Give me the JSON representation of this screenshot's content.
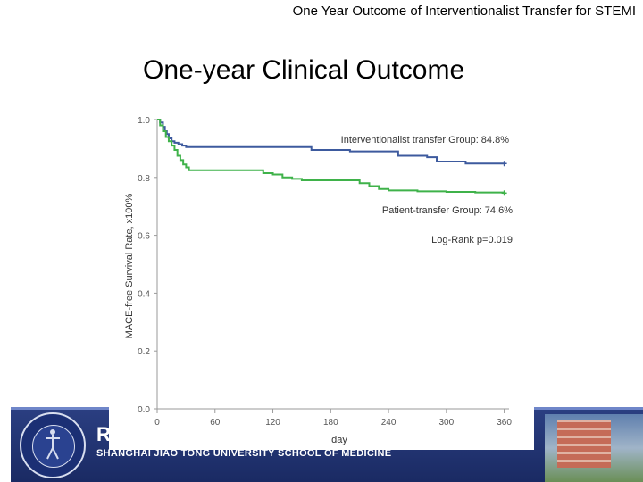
{
  "header": {
    "title": "One Year Outcome of Interventionalist Transfer for STEMI"
  },
  "slide": {
    "title": "One-year Clinical Outcome"
  },
  "footer": {
    "logo_text": "RJ",
    "school": "SHANGHAI JIAO TONG UNIVERSITY SCHOOL OF MEDICINE"
  },
  "chart_data": {
    "type": "line",
    "title": "One-year Clinical Outcome",
    "xlabel": "day",
    "ylabel": "MACE-free Survival Rate, x100%",
    "xlim": [
      0,
      365
    ],
    "ylim": [
      0,
      1.0
    ],
    "x_ticks": [
      "0",
      "60",
      "120",
      "180",
      "240",
      "300",
      "360"
    ],
    "y_ticks": [
      "0.0",
      "0.2",
      "0.4",
      "0.6",
      "0.8",
      "1.0"
    ],
    "grid": false,
    "series": [
      {
        "name": "Interventionalist transfer Group",
        "label": "Interventionalist transfer Group: 84.8%",
        "color": "#3d5a9e",
        "x": [
          0,
          3,
          6,
          8,
          10,
          12,
          15,
          18,
          22,
          26,
          30,
          40,
          80,
          150,
          160,
          200,
          250,
          280,
          290,
          320,
          360
        ],
        "y": [
          1.0,
          0.99,
          0.975,
          0.96,
          0.95,
          0.935,
          0.925,
          0.92,
          0.915,
          0.91,
          0.905,
          0.905,
          0.905,
          0.905,
          0.895,
          0.89,
          0.875,
          0.87,
          0.855,
          0.848,
          0.848
        ]
      },
      {
        "name": "Patient-transfer Group",
        "label": "Patient-transfer Group: 74.6%",
        "color": "#3fb24a",
        "x": [
          0,
          3,
          6,
          9,
          12,
          15,
          18,
          21,
          24,
          27,
          30,
          33,
          60,
          100,
          110,
          120,
          130,
          140,
          150,
          180,
          210,
          220,
          230,
          240,
          270,
          300,
          330,
          360
        ],
        "y": [
          1.0,
          0.98,
          0.96,
          0.94,
          0.925,
          0.91,
          0.895,
          0.875,
          0.86,
          0.845,
          0.835,
          0.825,
          0.825,
          0.825,
          0.815,
          0.81,
          0.8,
          0.795,
          0.79,
          0.79,
          0.78,
          0.77,
          0.76,
          0.755,
          0.752,
          0.75,
          0.748,
          0.746
        ]
      }
    ],
    "annotations": [
      {
        "text": "Log-Rank p=0.019"
      }
    ]
  }
}
